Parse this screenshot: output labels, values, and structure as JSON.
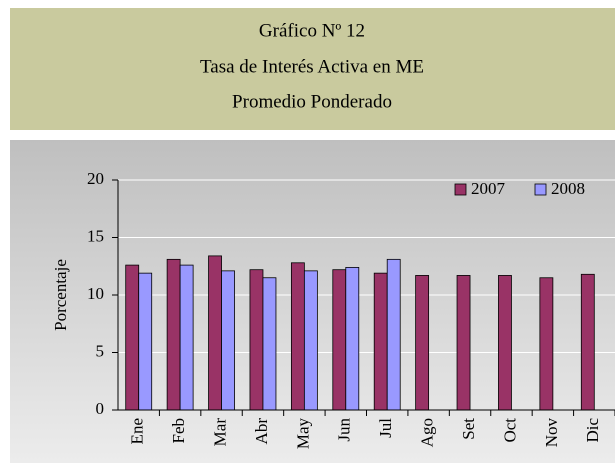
{
  "chart_data": {
    "type": "bar",
    "title": [
      "Gráfico  Nº 12",
      "Tasa de Interés Activa en ME",
      "Promedio Ponderado"
    ],
    "y_label": "Porcentaje",
    "categories": [
      "Ene",
      "Feb",
      "Mar",
      "Abr",
      "May",
      "Jun",
      "Jul",
      "Ago",
      "Set",
      "Oct",
      "Nov",
      "Dic"
    ],
    "series": [
      {
        "name": "2007",
        "color": "#993366",
        "values": [
          12.6,
          13.1,
          13.4,
          12.2,
          12.8,
          12.2,
          11.9,
          11.7,
          11.7,
          11.7,
          11.5,
          11.8
        ]
      },
      {
        "name": "2008",
        "color": "#9999ff",
        "values": [
          11.9,
          12.6,
          12.1,
          11.5,
          12.1,
          12.4,
          13.1,
          null,
          null,
          null,
          null,
          null
        ]
      }
    ],
    "ylim": [
      0,
      20
    ],
    "yticks": [
      0,
      5,
      10,
      15,
      20
    ],
    "grid": true,
    "legend": "top-right"
  }
}
